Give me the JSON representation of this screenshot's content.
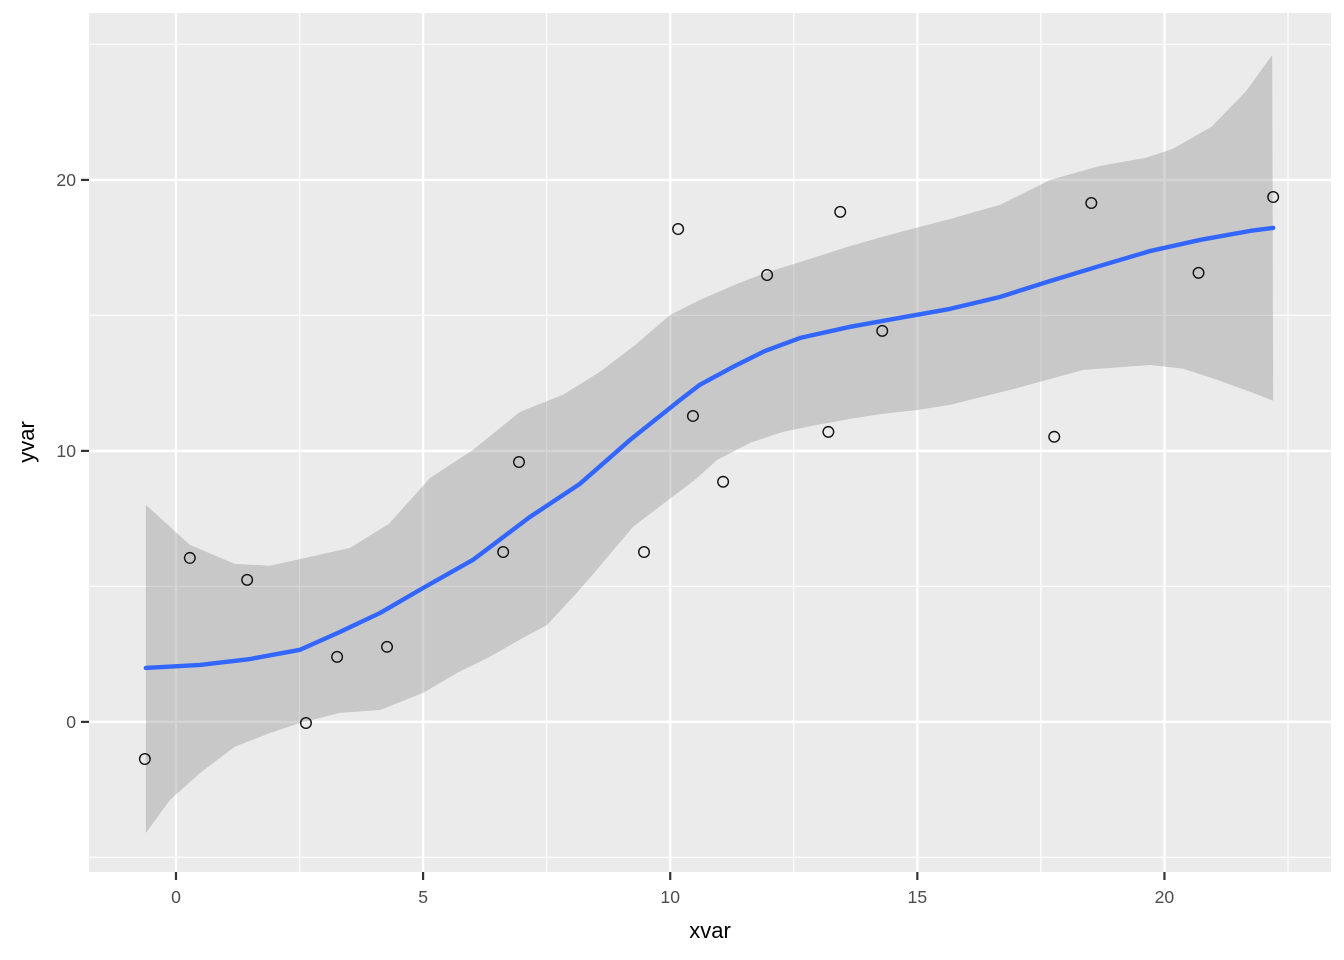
{
  "chart_data": {
    "type": "scatter",
    "title": "",
    "xlabel": "xvar",
    "ylabel": "yvar",
    "xlim": [
      -1.76,
      23.37
    ],
    "ylim": [
      -5.54,
      26.16
    ],
    "grid": true,
    "legend": "none",
    "x_ticks": {
      "major": [
        0,
        5,
        10,
        15,
        20
      ],
      "labels": [
        "0",
        "5",
        "10",
        "15",
        "20"
      ],
      "minor": [
        2.5,
        7.5,
        12.5,
        17.5,
        22.5
      ]
    },
    "y_ticks": {
      "major": [
        0,
        10,
        20
      ],
      "labels": [
        "0",
        "10",
        "20"
      ],
      "minor": [
        -5,
        5,
        15,
        25
      ]
    },
    "points": [
      [
        -0.63,
        -1.37
      ],
      [
        0.28,
        6.05
      ],
      [
        1.44,
        5.24
      ],
      [
        2.63,
        -0.04
      ],
      [
        3.26,
        2.4
      ],
      [
        4.27,
        2.77
      ],
      [
        6.62,
        6.27
      ],
      [
        6.94,
        9.59
      ],
      [
        9.47,
        6.27
      ],
      [
        10.16,
        18.19
      ],
      [
        10.46,
        11.29
      ],
      [
        11.07,
        8.86
      ],
      [
        11.96,
        16.49
      ],
      [
        13.2,
        10.7
      ],
      [
        13.44,
        18.82
      ],
      [
        14.29,
        14.43
      ],
      [
        17.77,
        10.52
      ],
      [
        18.52,
        19.15
      ],
      [
        20.69,
        16.57
      ],
      [
        22.2,
        19.37
      ]
    ],
    "smooth_line": [
      [
        -0.61,
        1.99
      ],
      [
        0.49,
        2.1
      ],
      [
        1.5,
        2.32
      ],
      [
        2.51,
        2.66
      ],
      [
        3.32,
        3.32
      ],
      [
        4.13,
        4.02
      ],
      [
        5.0,
        4.94
      ],
      [
        6.01,
        5.98
      ],
      [
        7.16,
        7.56
      ],
      [
        8.17,
        8.78
      ],
      [
        9.19,
        10.41
      ],
      [
        10.2,
        11.88
      ],
      [
        10.6,
        12.44
      ],
      [
        11.27,
        13.1
      ],
      [
        11.92,
        13.69
      ],
      [
        12.63,
        14.17
      ],
      [
        13.64,
        14.58
      ],
      [
        14.65,
        14.91
      ],
      [
        15.66,
        15.24
      ],
      [
        16.67,
        15.68
      ],
      [
        17.69,
        16.27
      ],
      [
        18.7,
        16.83
      ],
      [
        19.72,
        17.38
      ],
      [
        20.73,
        17.79
      ],
      [
        21.74,
        18.12
      ],
      [
        22.2,
        18.23
      ]
    ],
    "confidence_band": {
      "upper": [
        [
          -0.61,
          8.01
        ],
        [
          0.28,
          6.53
        ],
        [
          1.19,
          5.83
        ],
        [
          1.9,
          5.76
        ],
        [
          2.71,
          6.09
        ],
        [
          3.52,
          6.42
        ],
        [
          4.31,
          7.31
        ],
        [
          5.14,
          9.0
        ],
        [
          6.01,
          10.04
        ],
        [
          6.96,
          11.44
        ],
        [
          7.83,
          12.07
        ],
        [
          8.58,
          12.92
        ],
        [
          9.29,
          13.91
        ],
        [
          10.0,
          15.02
        ],
        [
          10.6,
          15.57
        ],
        [
          11.31,
          16.13
        ],
        [
          11.92,
          16.57
        ],
        [
          12.63,
          16.97
        ],
        [
          13.64,
          17.56
        ],
        [
          14.65,
          18.08
        ],
        [
          15.66,
          18.56
        ],
        [
          16.67,
          19.08
        ],
        [
          17.69,
          20.0
        ],
        [
          18.7,
          20.52
        ],
        [
          19.61,
          20.81
        ],
        [
          20.16,
          21.14
        ],
        [
          20.95,
          21.96
        ],
        [
          21.64,
          23.25
        ],
        [
          22.18,
          24.61
        ]
      ],
      "lower": [
        [
          -0.61,
          -4.1
        ],
        [
          -0.12,
          -2.88
        ],
        [
          0.49,
          -1.88
        ],
        [
          1.19,
          -0.92
        ],
        [
          1.9,
          -0.41
        ],
        [
          2.51,
          -0.04
        ],
        [
          3.32,
          0.33
        ],
        [
          4.13,
          0.44
        ],
        [
          5.0,
          1.07
        ],
        [
          5.69,
          1.81
        ],
        [
          6.35,
          2.4
        ],
        [
          7.02,
          3.1
        ],
        [
          7.51,
          3.58
        ],
        [
          8.11,
          4.76
        ],
        [
          8.48,
          5.54
        ],
        [
          9.25,
          7.2
        ],
        [
          9.96,
          8.19
        ],
        [
          10.5,
          8.93
        ],
        [
          10.95,
          9.67
        ],
        [
          11.62,
          10.3
        ],
        [
          12.28,
          10.7
        ],
        [
          12.97,
          10.96
        ],
        [
          13.64,
          11.18
        ],
        [
          14.31,
          11.37
        ],
        [
          15.0,
          11.51
        ],
        [
          15.66,
          11.7
        ],
        [
          17.02,
          12.32
        ],
        [
          18.36,
          12.99
        ],
        [
          19.72,
          13.17
        ],
        [
          20.38,
          13.03
        ],
        [
          21.07,
          12.62
        ],
        [
          21.74,
          12.18
        ],
        [
          22.2,
          11.85
        ]
      ]
    },
    "colors": {
      "page_background": "#ffffff",
      "panel_background": "#ebebeb",
      "grid_major": "#ffffff",
      "grid_minor": "#ffffff",
      "ribbon_fill": "rgba(153,153,153,0.42)",
      "smooth_line": "#3366ff",
      "point_stroke": "#111111",
      "tick_mark": "#333333",
      "tick_text": "#4d4d4d",
      "axis_title": "#000000"
    }
  }
}
